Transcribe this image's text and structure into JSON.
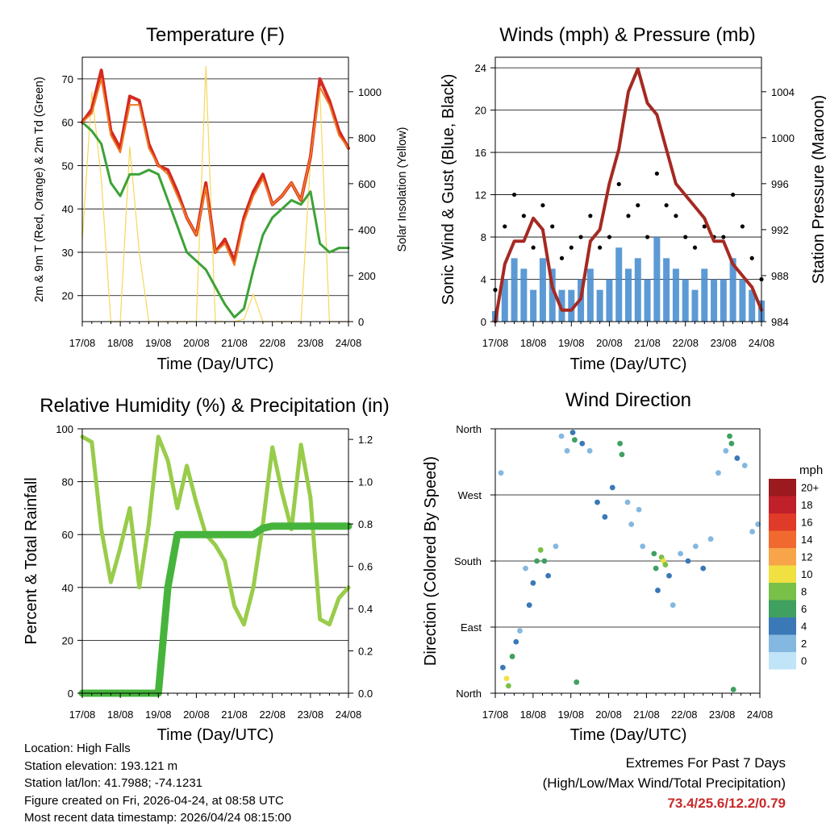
{
  "station": {
    "location": "Location: High Falls",
    "elevation": "Station elevation: 193.121 m",
    "latlon": "Station lat/lon: 41.7988; -74.1231",
    "created": "Figure created on Fri, 2026-04-24, at 08:58 UTC",
    "recent": "Most recent data timestamp: 2026/04/24 08:15:00"
  },
  "extremes": {
    "line1": "Extremes For Past 7 Days",
    "line2": "(High/Low/Max Wind/Total Precipitation)",
    "values": "73.4/25.6/12.2/0.79",
    "color": "#c82a2a"
  },
  "x_ticks": [
    "17/08",
    "18/08",
    "19/08",
    "20/08",
    "21/08",
    "22/08",
    "23/08",
    "24/08"
  ],
  "x_label": "Time (Day/UTC)",
  "chart_data": [
    {
      "id": "temperature",
      "type": "line",
      "title": "Temperature (F)",
      "xlabel": "Time (Day/UTC)",
      "ylabel": "2m & 9m T (Red, Orange) & 2m Td (Green)",
      "ylabel_right": "Solar Insolation (Yellow)",
      "ylim": [
        14,
        75
      ],
      "ylim_right": [
        0,
        1150
      ],
      "yticks": [
        20,
        30,
        40,
        50,
        60,
        70
      ],
      "yticks_right": [
        0,
        200,
        400,
        600,
        800,
        1000
      ],
      "x": [
        0,
        0.25,
        0.5,
        0.75,
        1,
        1.25,
        1.5,
        1.75,
        2,
        2.25,
        2.5,
        2.75,
        3,
        3.25,
        3.5,
        3.75,
        4,
        4.25,
        4.5,
        4.75,
        5,
        5.25,
        5.5,
        5.75,
        6,
        6.25,
        6.5,
        6.75,
        7
      ],
      "series": [
        {
          "name": "2m T",
          "color": "#d42a20",
          "width": 4,
          "values": [
            60,
            63,
            72,
            58,
            54,
            66,
            65,
            55,
            50,
            49,
            44,
            38,
            34,
            46,
            30,
            33,
            28,
            38,
            44,
            48,
            41,
            43,
            46,
            42,
            52,
            70,
            65,
            58,
            54
          ]
        },
        {
          "name": "9m T",
          "color": "#ef7a24",
          "width": 2,
          "values": [
            60,
            62,
            70,
            57,
            53,
            64,
            64,
            54,
            50,
            48,
            43,
            38,
            34,
            45,
            30,
            32,
            27,
            37,
            43,
            47,
            41,
            43,
            46,
            42,
            52,
            68,
            64,
            57,
            54
          ]
        },
        {
          "name": "2m Td",
          "color": "#3ca236",
          "width": 3,
          "values": [
            60,
            58,
            55,
            46,
            43,
            48,
            48,
            49,
            48,
            42,
            36,
            30,
            28,
            26,
            22,
            18,
            15,
            17,
            26,
            34,
            38,
            40,
            42,
            41,
            44,
            32,
            30,
            31,
            31
          ]
        },
        {
          "name": "Solar Insolation",
          "axis": "right",
          "color": "#f5d85a",
          "width": 1.2,
          "values": [
            350,
            1000,
            620,
            0,
            0,
            760,
            300,
            0,
            0,
            0,
            0,
            0,
            0,
            1110,
            0,
            0,
            0,
            10,
            120,
            0,
            0,
            0,
            0,
            0,
            700,
            1000,
            0,
            0,
            0
          ]
        }
      ]
    },
    {
      "id": "winds",
      "type": "line",
      "title": "Winds (mph) & Pressure (mb)",
      "xlabel": "Time (Day/UTC)",
      "ylabel": "Sonic Wind & Gust (Blue, Black)",
      "ylabel_right": "Station Pressure (Maroon)",
      "ylim": [
        0,
        25
      ],
      "ylim_right": [
        984,
        1007
      ],
      "yticks": [
        0,
        4,
        8,
        12,
        16,
        20,
        24
      ],
      "yticks_right": [
        984,
        988,
        992,
        996,
        1000,
        1004
      ],
      "x": [
        0,
        0.25,
        0.5,
        0.75,
        1,
        1.25,
        1.5,
        1.75,
        2,
        2.25,
        2.5,
        2.75,
        3,
        3.25,
        3.5,
        3.75,
        4,
        4.25,
        4.5,
        4.75,
        5,
        5.25,
        5.5,
        5.75,
        6,
        6.25,
        6.5,
        6.75,
        7
      ],
      "series": [
        {
          "name": "Sonic Wind",
          "color": "#4a8fd0",
          "values": [
            1,
            4,
            6,
            5,
            3,
            6,
            5,
            3,
            3,
            4,
            5,
            3,
            4,
            7,
            5,
            6,
            4,
            8,
            6,
            5,
            4,
            3,
            5,
            4,
            4,
            6,
            4,
            3,
            2
          ]
        },
        {
          "name": "Gust",
          "color": "#000000",
          "values": [
            3,
            9,
            12,
            10,
            7,
            11,
            9,
            6,
            7,
            8,
            10,
            7,
            8,
            13,
            10,
            11,
            8,
            14,
            11,
            10,
            8,
            7,
            9,
            8,
            8,
            12,
            9,
            6,
            4
          ]
        },
        {
          "name": "Station Pressure",
          "axis": "right",
          "color": "#a52a22",
          "width": 4,
          "values": [
            984,
            989,
            991,
            991,
            993,
            992,
            987,
            985,
            985,
            986,
            991,
            992,
            996,
            999,
            1004,
            1006,
            1003,
            1002,
            999,
            996,
            995,
            994,
            993,
            991,
            991,
            989,
            988,
            987,
            985
          ]
        }
      ]
    },
    {
      "id": "humidity",
      "type": "line",
      "title": "Relative Humidity (%) & Precipitation (in)",
      "xlabel": "Time (Day/UTC)",
      "ylabel": "Percent & Total Rainfall",
      "ylim": [
        0,
        100
      ],
      "ylim_right": [
        0,
        1.25
      ],
      "yticks": [
        0,
        20,
        40,
        60,
        80,
        100
      ],
      "yticks_right": [
        0,
        0.2,
        0.4,
        0.6,
        0.8,
        1.0,
        1.2
      ],
      "x": [
        0,
        0.25,
        0.5,
        0.75,
        1,
        1.25,
        1.5,
        1.75,
        2,
        2.25,
        2.5,
        2.75,
        3,
        3.25,
        3.5,
        3.75,
        4,
        4.25,
        4.5,
        4.75,
        5,
        5.25,
        5.5,
        5.75,
        6,
        6.25,
        6.5,
        6.75,
        7
      ],
      "series": [
        {
          "name": "Relative Humidity",
          "color": "#98cc4a",
          "width": 5,
          "values": [
            97,
            95,
            62,
            42,
            55,
            70,
            40,
            64,
            97,
            88,
            70,
            86,
            72,
            60,
            56,
            50,
            33,
            26,
            40,
            64,
            93,
            76,
            62,
            94,
            74,
            28,
            26,
            36,
            40
          ]
        },
        {
          "name": "Total Precipitation",
          "axis": "right",
          "color": "#46b43c",
          "width": 9,
          "values": [
            0,
            0,
            0,
            0,
            0,
            0,
            0,
            0,
            0,
            0.5,
            0.75,
            0.75,
            0.75,
            0.75,
            0.75,
            0.75,
            0.75,
            0.75,
            0.75,
            0.78,
            0.79,
            0.79,
            0.79,
            0.79,
            0.79,
            0.79,
            0.79,
            0.79,
            0.79
          ]
        }
      ]
    },
    {
      "id": "direction",
      "type": "scatter",
      "title": "Wind Direction",
      "xlabel": "Time (Day/UTC)",
      "ylabel": "Direction (Colored By Speed)",
      "yticks": [
        "North",
        "East",
        "South",
        "West",
        "North"
      ],
      "ylim": [
        0,
        360
      ],
      "colorbar_label": "mph",
      "colorbar": [
        {
          "label": "20+",
          "color": "#9a1a1e"
        },
        {
          "label": "18",
          "color": "#c0202a"
        },
        {
          "label": "16",
          "color": "#e03a28"
        },
        {
          "label": "14",
          "color": "#f06a30"
        },
        {
          "label": "12",
          "color": "#f8a448"
        },
        {
          "label": "10",
          "color": "#f0e040"
        },
        {
          "label": "8",
          "color": "#78c048"
        },
        {
          "label": "6",
          "color": "#40a060"
        },
        {
          "label": "4",
          "color": "#3a78b8"
        },
        {
          "label": "2",
          "color": "#84b8e0"
        },
        {
          "label": "0",
          "color": "#c0e4f8"
        }
      ],
      "points": [
        {
          "t": 0.15,
          "dir": 300,
          "speed": 3
        },
        {
          "t": 0.2,
          "dir": 35,
          "speed": 4
        },
        {
          "t": 0.3,
          "dir": 20,
          "speed": 10
        },
        {
          "t": 0.35,
          "dir": 10,
          "speed": 8
        },
        {
          "t": 0.45,
          "dir": 50,
          "speed": 6
        },
        {
          "t": 0.55,
          "dir": 70,
          "speed": 4
        },
        {
          "t": 0.65,
          "dir": 85,
          "speed": 3
        },
        {
          "t": 0.8,
          "dir": 170,
          "speed": 2
        },
        {
          "t": 0.9,
          "dir": 120,
          "speed": 4
        },
        {
          "t": 1.0,
          "dir": 150,
          "speed": 5
        },
        {
          "t": 1.1,
          "dir": 180,
          "speed": 6
        },
        {
          "t": 1.2,
          "dir": 195,
          "speed": 8
        },
        {
          "t": 1.3,
          "dir": 180,
          "speed": 6
        },
        {
          "t": 1.4,
          "dir": 160,
          "speed": 4
        },
        {
          "t": 1.6,
          "dir": 200,
          "speed": 3
        },
        {
          "t": 1.75,
          "dir": 350,
          "speed": 2
        },
        {
          "t": 1.9,
          "dir": 330,
          "speed": 3
        },
        {
          "t": 2.05,
          "dir": 355,
          "speed": 5
        },
        {
          "t": 2.1,
          "dir": 345,
          "speed": 6
        },
        {
          "t": 2.15,
          "dir": 15,
          "speed": 6
        },
        {
          "t": 2.3,
          "dir": 340,
          "speed": 4
        },
        {
          "t": 2.5,
          "dir": 330,
          "speed": 2
        },
        {
          "t": 2.7,
          "dir": 260,
          "speed": 4
        },
        {
          "t": 2.9,
          "dir": 240,
          "speed": 4
        },
        {
          "t": 3.1,
          "dir": 280,
          "speed": 5
        },
        {
          "t": 3.3,
          "dir": 340,
          "speed": 6
        },
        {
          "t": 3.35,
          "dir": 325,
          "speed": 7
        },
        {
          "t": 3.5,
          "dir": 260,
          "speed": 3
        },
        {
          "t": 3.6,
          "dir": 230,
          "speed": 3
        },
        {
          "t": 3.8,
          "dir": 250,
          "speed": 2
        },
        {
          "t": 3.9,
          "dir": 200,
          "speed": 2
        },
        {
          "t": 4.2,
          "dir": 190,
          "speed": 6
        },
        {
          "t": 4.25,
          "dir": 170,
          "speed": 7
        },
        {
          "t": 4.3,
          "dir": 140,
          "speed": 4
        },
        {
          "t": 4.4,
          "dir": 185,
          "speed": 8
        },
        {
          "t": 4.45,
          "dir": 180,
          "speed": 10
        },
        {
          "t": 4.5,
          "dir": 175,
          "speed": 9
        },
        {
          "t": 4.6,
          "dir": 160,
          "speed": 4
        },
        {
          "t": 4.7,
          "dir": 120,
          "speed": 2
        },
        {
          "t": 4.9,
          "dir": 190,
          "speed": 3
        },
        {
          "t": 5.1,
          "dir": 180,
          "speed": 4
        },
        {
          "t": 5.3,
          "dir": 200,
          "speed": 3
        },
        {
          "t": 5.5,
          "dir": 170,
          "speed": 4
        },
        {
          "t": 5.7,
          "dir": 210,
          "speed": 3
        },
        {
          "t": 5.9,
          "dir": 300,
          "speed": 2
        },
        {
          "t": 6.1,
          "dir": 330,
          "speed": 3
        },
        {
          "t": 6.2,
          "dir": 350,
          "speed": 6
        },
        {
          "t": 6.25,
          "dir": 340,
          "speed": 7
        },
        {
          "t": 6.3,
          "dir": 5,
          "speed": 6
        },
        {
          "t": 6.4,
          "dir": 320,
          "speed": 4
        },
        {
          "t": 6.6,
          "dir": 310,
          "speed": 3
        },
        {
          "t": 6.8,
          "dir": 220,
          "speed": 2
        },
        {
          "t": 6.95,
          "dir": 230,
          "speed": 3
        }
      ]
    }
  ]
}
